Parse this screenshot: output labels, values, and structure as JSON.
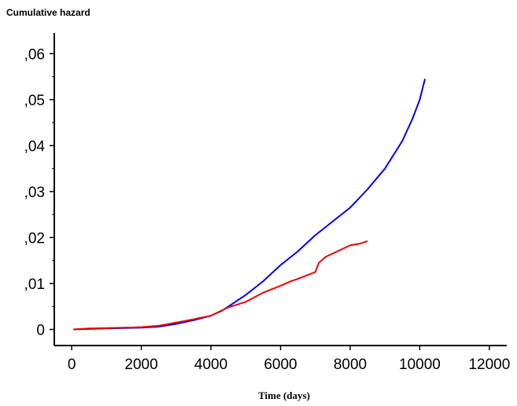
{
  "chart_data": {
    "type": "line",
    "title": "",
    "ylabel": "Cumulative hazard",
    "xlabel": "Time (days)",
    "xlim": [
      -500,
      12500
    ],
    "ylim": [
      -0.0035,
      0.0645
    ],
    "x_ticks": [
      0,
      2000,
      4000,
      6000,
      8000,
      10000,
      12000
    ],
    "x_tick_labels": [
      "0",
      "2000",
      "4000",
      "6000",
      "8000",
      "10000",
      "12000"
    ],
    "y_ticks": [
      0,
      0.01,
      0.02,
      0.03,
      0.04,
      0.05,
      0.06
    ],
    "y_tick_labels": [
      "0",
      ",01",
      ",02",
      ",03",
      ",04",
      ",05",
      ",06"
    ],
    "y_minor_ticks": [
      0.005,
      0.015,
      0.025,
      0.035,
      0.045,
      0.055
    ],
    "grid": false,
    "legend": "none",
    "series": [
      {
        "color": "#0000ee",
        "x": [
          50,
          500,
          1000,
          1500,
          2000,
          2500,
          3000,
          3500,
          4000,
          4300,
          4500,
          5000,
          5500,
          6000,
          6500,
          7000,
          7500,
          8000,
          8500,
          9000,
          9500,
          9800,
          10000,
          10150
        ],
        "y": [
          0,
          0.0001,
          0.0002,
          0.0003,
          0.0004,
          0.0006,
          0.0012,
          0.002,
          0.003,
          0.004,
          0.005,
          0.0075,
          0.0105,
          0.014,
          0.017,
          0.0205,
          0.0235,
          0.0265,
          0.0305,
          0.035,
          0.041,
          0.046,
          0.05,
          0.0545
        ]
      },
      {
        "color": "#ee0000",
        "x": [
          50,
          500,
          1000,
          1500,
          2000,
          2500,
          3000,
          3500,
          4000,
          4500,
          5000,
          5500,
          6000,
          6300,
          6500,
          7000,
          7100,
          7300,
          7500,
          8000,
          8300,
          8500
        ],
        "y": [
          0,
          0.0002,
          0.0003,
          0.0004,
          0.0005,
          0.0008,
          0.0015,
          0.0022,
          0.003,
          0.0048,
          0.006,
          0.008,
          0.0095,
          0.0105,
          0.011,
          0.0125,
          0.0145,
          0.0158,
          0.0165,
          0.0183,
          0.0187,
          0.0192
        ]
      }
    ]
  }
}
